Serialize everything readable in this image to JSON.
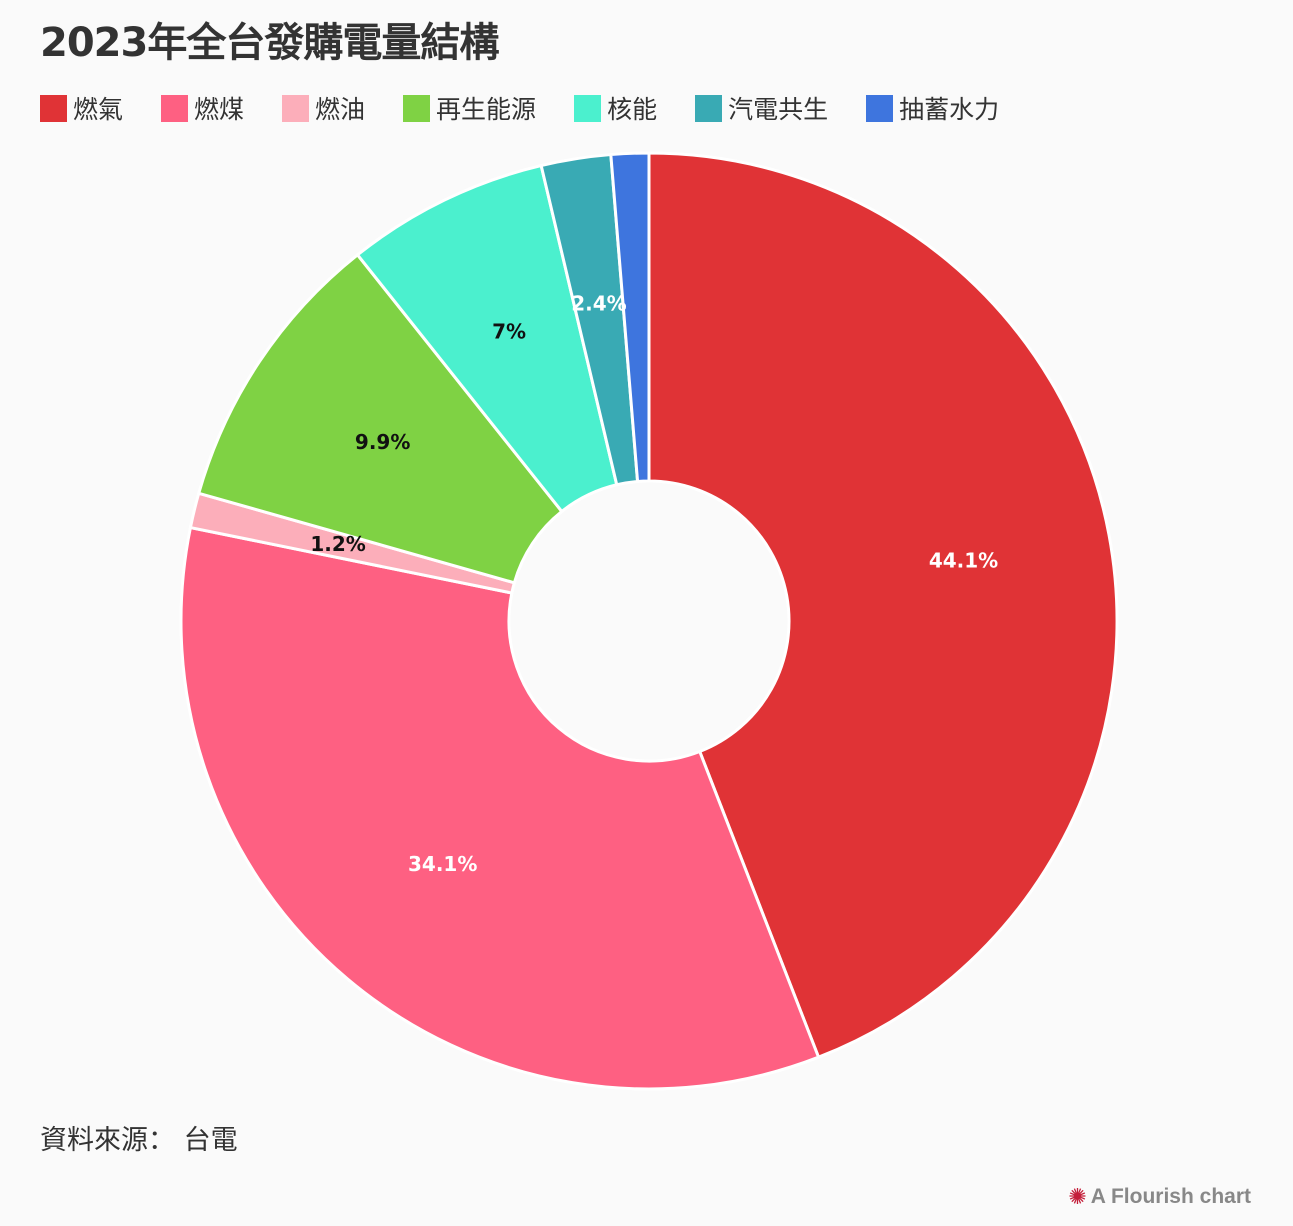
{
  "title": "2023年全台發購電量結構",
  "source": "資料來源： 台電",
  "credit": "A Flourish chart",
  "credit_icon": "flourish-burst-icon",
  "chart_data": {
    "type": "pie",
    "donut": true,
    "legend_position": "top-left",
    "categories": [
      "燃氣",
      "燃煤",
      "燃油",
      "再生能源",
      "核能",
      "汽電共生",
      "抽蓄水力"
    ],
    "values": [
      44.1,
      34.1,
      1.2,
      9.9,
      7,
      2.4,
      1.3
    ],
    "value_labels": [
      "44.1%",
      "34.1%",
      "1.2%",
      "9.9%",
      "7%",
      "2.4%",
      ""
    ],
    "colors": [
      "#e03336",
      "#fe6082",
      "#fcaeba",
      "#7fd244",
      "#4bf0ce",
      "#39aab4",
      "#3e75de"
    ],
    "label_colors": [
      "#ffffff",
      "#ffffff",
      "#111111",
      "#111111",
      "#111111",
      "#ffffff",
      "#ffffff"
    ]
  }
}
